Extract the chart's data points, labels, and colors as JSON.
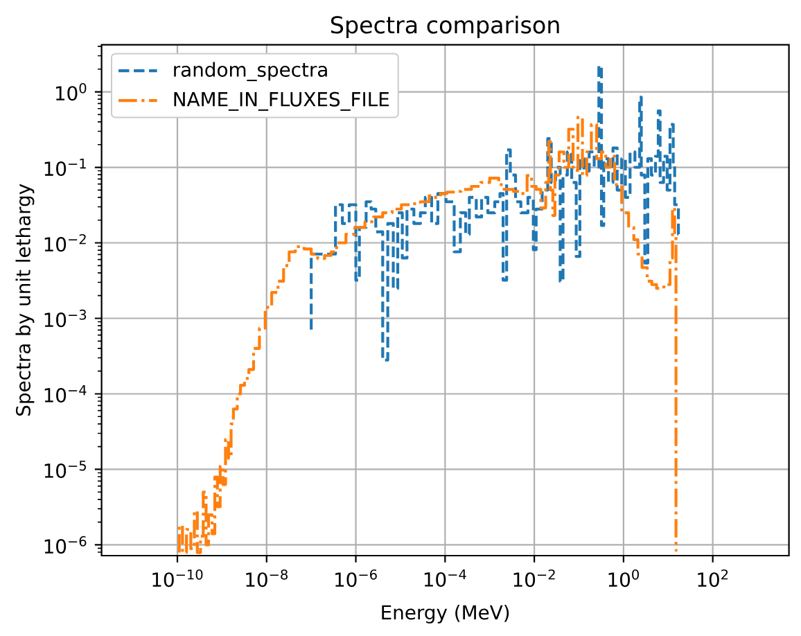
{
  "chart_data": {
    "type": "step",
    "title": "Spectra comparison",
    "xlabel": "Energy (MeV)",
    "ylabel": "Spectra by unit lethargy",
    "log": "xy",
    "grid": true,
    "legend": "top left",
    "xlim": [
      2e-12,
      5100.0
    ],
    "ylim": [
      7.2e-07,
      4.2
    ],
    "xticks": [
      {
        "value": 1e-10,
        "label": "10$^{−10}$"
      },
      {
        "value": 1e-08,
        "label": "10$^{−8}$"
      },
      {
        "value": 1e-06,
        "label": "10$^{−6}$"
      },
      {
        "value": 0.0001,
        "label": "10$^{−4}$"
      },
      {
        "value": 0.01,
        "label": "10$^{−2}$"
      },
      {
        "value": 1,
        "label": "10$^{0}$"
      },
      {
        "value": 100,
        "label": "10$^{2}$"
      }
    ],
    "yticks": [
      {
        "value": 1e-06,
        "label": "10$^{−6}$"
      },
      {
        "value": 1e-05,
        "label": "10$^{−5}$"
      },
      {
        "value": 0.0001,
        "label": "10$^{−4}$"
      },
      {
        "value": 0.001,
        "label": "10$^{−3}$"
      },
      {
        "value": 0.01,
        "label": "10$^{−2}$"
      },
      {
        "value": 0.1,
        "label": "10$^{−1}$"
      },
      {
        "value": 1,
        "label": "10$^{0}$"
      }
    ],
    "series": [
      {
        "name": "random_spectra",
        "color": "#1f77b4",
        "line_style": "dashed",
        "x": [
          1e-07,
          3.5e-07,
          5e-07,
          7.1e-07,
          1e-06,
          1.2e-06,
          1.7e-06,
          2.2e-06,
          2.8e-06,
          4e-06,
          5.2e-06,
          6.9e-06,
          8.7e-06,
          1.1e-05,
          1.4e-05,
          2e-05,
          2.8e-05,
          3.6e-05,
          5e-05,
          6.9e-05,
          0.000105,
          0.00016,
          0.00022,
          0.00029,
          0.00035,
          0.0005,
          0.00066,
          0.00091,
          0.0013,
          0.0017,
          0.002,
          0.0024,
          0.0029,
          0.0038,
          0.005,
          0.0072,
          0.0095,
          0.011,
          0.015,
          0.02,
          0.024,
          0.03,
          0.038,
          0.044,
          0.055,
          0.069,
          0.087,
          0.105,
          0.13,
          0.17,
          0.22,
          0.28,
          0.32,
          0.36,
          0.46,
          0.58,
          0.72,
          0.91,
          1.1,
          1.4,
          1.8,
          2.3,
          2.5,
          3.0,
          3.5,
          4.2,
          5.2,
          6.0,
          6.6,
          7.9,
          9.5,
          11,
          13,
          14,
          17,
          18
        ],
        "values": [
          0.00071,
          0.0071,
          0.032,
          0.018,
          0.032,
          0.0032,
          0.016,
          0.035,
          0.028,
          0.014,
          0.00028,
          0.018,
          0.0025,
          0.025,
          0.0063,
          0.028,
          0.018,
          0.025,
          0.04,
          0.018,
          0.045,
          0.035,
          0.0076,
          0.025,
          0.013,
          0.04,
          0.022,
          0.04,
          0.025,
          0.035,
          0.045,
          0.0032,
          0.17,
          0.079,
          0.035,
          0.025,
          0.04,
          0.0081,
          0.028,
          0.05,
          0.24,
          0.063,
          0.1,
          0.0031,
          0.079,
          0.16,
          0.063,
          0.0066,
          0.13,
          0.089,
          0.16,
          0.1,
          2.2,
          0.017,
          0.13,
          0.063,
          0.18,
          0.05,
          0.13,
          0.04,
          0.16,
          0.1,
          0.85,
          0.079,
          0.0054,
          0.13,
          0.079,
          0.14,
          0.56,
          0.063,
          0.14,
          0.05,
          0.37,
          0.11,
          0.032,
          0.013
        ]
      },
      {
        "name": "NAME_IN_FLUXES_FILE",
        "color": "#ff7f0e",
        "line_style": "dashdot",
        "x": [
          1.1e-10,
          1.3e-10,
          1.6e-10,
          2e-10,
          2.4e-10,
          2.8e-10,
          3.3e-10,
          3.8e-10,
          4.4e-10,
          5e-10,
          6e-10,
          6.9e-10,
          7.9e-10,
          9.1e-10,
          1.05e-09,
          1.2e-09,
          1.4e-09,
          1.6e-09,
          1.8e-09,
          2.2e-09,
          2.6e-09,
          3.2e-09,
          4e-09,
          5.1e-09,
          6.9e-09,
          9.3e-09,
          1.3e-08,
          1.8e-08,
          2.4e-08,
          3.2e-08,
          4.4e-08,
          6.9e-08,
          1e-07,
          1.4e-07,
          2e-07,
          2.8e-07,
          3.7e-07,
          6e-07,
          9.5e-07,
          1.6e-06,
          2.5e-06,
          4e-06,
          6.5e-06,
          1.05e-05,
          1.7e-05,
          2.8e-05,
          4.4e-05,
          5.6e-05,
          7.9e-05,
          0.00011,
          0.00017,
          0.00023,
          0.00039,
          0.00063,
          0.001,
          0.0016,
          0.0021,
          0.0034,
          0.005,
          0.0069,
          0.0087,
          0.011,
          0.014,
          0.018,
          0.021,
          0.023,
          0.026,
          0.029,
          0.036,
          0.046,
          0.059,
          0.074,
          0.095,
          0.12,
          0.15,
          0.19,
          0.25,
          0.32,
          0.4,
          0.5,
          0.63,
          0.91,
          1.3,
          1.7,
          2.1,
          2.6,
          3.4,
          4.3,
          5.5,
          6.9,
          8.7,
          11,
          12.5,
          14,
          15,
          16
        ],
        "values": [
          7.9e-07,
          1.8e-06,
          7.9e-07,
          1.6e-06,
          8.9e-07,
          2.8e-06,
          7.9e-07,
          1.3e-06,
          5e-06,
          1e-06,
          2.5e-06,
          1.4e-06,
          7.9e-06,
          3.2e-06,
          1.1e-05,
          6.3e-06,
          2.5e-05,
          1.4e-05,
          4e-05,
          6.3e-05,
          0.0001,
          0.00013,
          0.00016,
          0.00021,
          0.0004,
          0.00074,
          0.0014,
          0.0022,
          0.0031,
          0.005,
          0.0076,
          0.0089,
          0.0083,
          0.0071,
          0.0062,
          0.0068,
          0.0076,
          0.01,
          0.013,
          0.016,
          0.019,
          0.022,
          0.025,
          0.028,
          0.032,
          0.033,
          0.035,
          0.042,
          0.04,
          0.045,
          0.047,
          0.048,
          0.051,
          0.056,
          0.063,
          0.072,
          0.059,
          0.051,
          0.048,
          0.045,
          0.078,
          0.056,
          0.051,
          0.029,
          0.063,
          0.22,
          0.05,
          0.023,
          0.079,
          0.16,
          0.1,
          0.32,
          0.091,
          0.46,
          0.078,
          0.16,
          0.37,
          0.13,
          0.16,
          0.1,
          0.14,
          0.059,
          0.025,
          0.016,
          0.011,
          0.0071,
          0.0047,
          0.0031,
          0.0028,
          0.0025,
          0.0026,
          0.0028,
          0.0063,
          0.029,
          0.013,
          8.5e-07
        ]
      }
    ]
  }
}
